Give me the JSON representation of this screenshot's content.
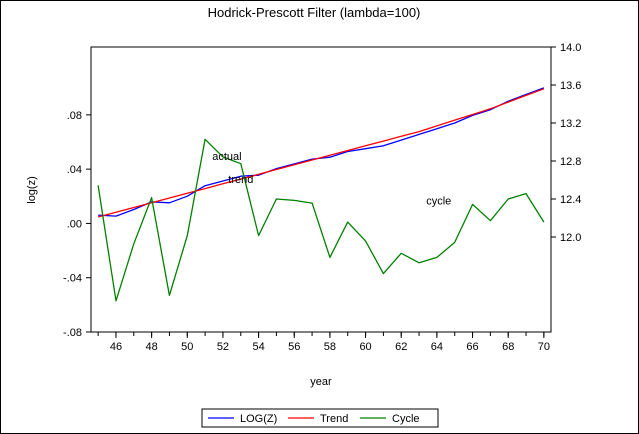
{
  "chart_data": {
    "type": "line",
    "title": "Hodrick-Prescott Filter (lambda=100)",
    "xlabel": "year",
    "ylabel_left": "log(z)",
    "x": [
      45,
      46,
      47,
      48,
      49,
      50,
      51,
      52,
      53,
      54,
      55,
      56,
      57,
      58,
      59,
      60,
      61,
      62,
      63,
      64,
      65,
      66,
      67,
      68,
      69,
      70
    ],
    "x_ticks": [
      "46",
      "48",
      "50",
      "52",
      "54",
      "56",
      "58",
      "60",
      "62",
      "64",
      "66",
      "68",
      "70"
    ],
    "x_tick_values": [
      46,
      48,
      50,
      52,
      54,
      56,
      58,
      60,
      62,
      64,
      66,
      68,
      70
    ],
    "xlim": [
      44.6,
      70.4
    ],
    "left_axis": {
      "ylim": [
        -0.08,
        0.13
      ],
      "ticks": [
        -0.08,
        -0.04,
        0.0,
        0.04,
        0.08
      ],
      "tick_labels": [
        "-.08",
        "-.04",
        ".00",
        ".04",
        ".08"
      ]
    },
    "right_axis": {
      "ylim": [
        11.0,
        14.0
      ],
      "ticks": [
        12.0,
        12.4,
        12.8,
        13.2,
        13.6,
        14.0
      ],
      "tick_labels": [
        "12.0",
        "12.4",
        "12.8",
        "13.2",
        "13.6",
        "14.0"
      ]
    },
    "series": [
      {
        "name": "LOG(Z)",
        "axis": "right",
        "color": "#0000ff",
        "values": [
          12.23,
          12.22,
          12.29,
          12.37,
          12.36,
          12.43,
          12.54,
          12.59,
          12.64,
          12.65,
          12.72,
          12.77,
          12.82,
          12.84,
          12.9,
          12.93,
          12.96,
          13.02,
          13.08,
          13.14,
          13.2,
          13.28,
          13.34,
          13.43,
          13.5,
          13.57
        ]
      },
      {
        "name": "Trend",
        "axis": "right",
        "color": "#ff0000",
        "values": [
          12.21,
          12.26,
          12.31,
          12.36,
          12.41,
          12.46,
          12.51,
          12.56,
          12.61,
          12.66,
          12.71,
          12.76,
          12.81,
          12.86,
          12.91,
          12.96,
          13.01,
          13.06,
          13.11,
          13.17,
          13.23,
          13.29,
          13.35,
          13.42,
          13.49,
          13.56
        ]
      },
      {
        "name": "Cycle",
        "axis": "left",
        "color": "#008000",
        "values": [
          0.028,
          -0.057,
          -0.015,
          0.019,
          -0.053,
          -0.009,
          0.062,
          0.049,
          0.044,
          -0.009,
          0.018,
          0.017,
          0.015,
          -0.025,
          0.001,
          -0.013,
          -0.037,
          -0.022,
          -0.029,
          -0.025,
          -0.014,
          0.014,
          0.002,
          0.018,
          0.022,
          0.001
        ]
      }
    ],
    "annotations": [
      {
        "text": "actual",
        "x": 51.4,
        "y_right": 12.81
      },
      {
        "text": "trend",
        "x": 52.3,
        "y_right": 12.57
      },
      {
        "text": "cycle",
        "x": 63.4,
        "y_left": 0.014
      }
    ],
    "legend": {
      "position": "bottom-center",
      "entries": [
        {
          "label": "LOG(Z)",
          "color": "#0000ff"
        },
        {
          "label": "Trend",
          "color": "#ff0000"
        },
        {
          "label": "Cycle",
          "color": "#008000"
        }
      ]
    }
  }
}
